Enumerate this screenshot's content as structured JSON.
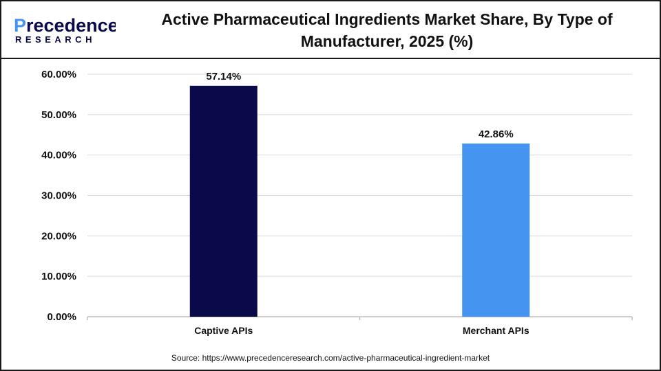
{
  "logo": {
    "brand": "Precedence",
    "brand_first": "P",
    "brand_rest": "recedence",
    "subtitle": "RESEARCH"
  },
  "header": {
    "title_line1": "Active Pharmaceutical Ingredients Market Share, By Type of",
    "title_line2": "Manufacturer, 2025 (%)"
  },
  "source": "Source: https://www.precedenceresearch.com/active-pharmaceutical-ingredient-market",
  "colors": {
    "captive": "#0a0a4a",
    "merchant": "#4494f0",
    "grid": "#d9d9d9",
    "axis": "#bfbfbf",
    "text": "#111111"
  },
  "chart_data": {
    "type": "bar",
    "categories": [
      "Captive APIs",
      "Merchant APIs"
    ],
    "values": [
      57.14,
      42.86
    ],
    "data_labels": [
      "57.14%",
      "42.86%"
    ],
    "ylim": [
      0,
      60
    ],
    "yticks": [
      0,
      10,
      20,
      30,
      40,
      50,
      60
    ],
    "ytick_labels": [
      "0.00%",
      "10.00%",
      "20.00%",
      "30.00%",
      "40.00%",
      "50.00%",
      "60.00%"
    ],
    "grid": true,
    "legend": "none"
  }
}
